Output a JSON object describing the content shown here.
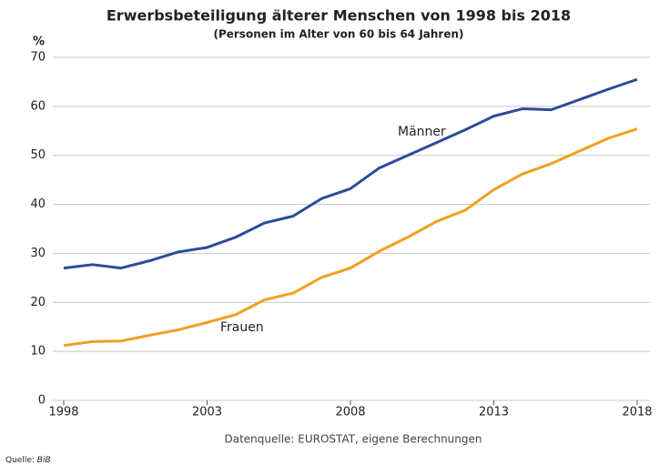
{
  "chart_data": {
    "type": "line",
    "title": "Erwerbsbeteiligung älterer Menschen von 1998 bis 2018",
    "subtitle": "(Personen im Alter von 60 bis 64 Jahren)",
    "y_label": "%",
    "source_note": "Datenquelle: EUROSTAT, eigene Berechnungen",
    "credit_label": "Quelle:",
    "credit_org": "BiB",
    "x": [
      1998,
      1999,
      2000,
      2001,
      2002,
      2003,
      2004,
      2005,
      2006,
      2007,
      2008,
      2009,
      2010,
      2011,
      2012,
      2013,
      2014,
      2015,
      2016,
      2017,
      2018
    ],
    "series": [
      {
        "name": "Männer",
        "color": "#2e4a9a",
        "values": [
          27.0,
          27.7,
          27.0,
          28.5,
          30.3,
          31.2,
          33.3,
          36.2,
          37.6,
          41.2,
          43.2,
          47.4,
          50.0,
          52.6,
          55.2,
          58.0,
          59.5,
          59.3,
          61.4,
          63.5,
          65.5
        ]
      },
      {
        "name": "Frauen",
        "color": "#f0a020",
        "values": [
          11.2,
          12.0,
          12.1,
          13.3,
          14.4,
          15.9,
          17.5,
          20.5,
          21.9,
          25.1,
          27.0,
          30.4,
          33.3,
          36.5,
          38.8,
          43.0,
          46.2,
          48.3,
          50.9,
          53.5,
          55.4
        ]
      }
    ],
    "xlim": [
      1998,
      2018
    ],
    "xticks": [
      1998,
      2003,
      2008,
      2013,
      2018
    ],
    "ylim": [
      0,
      70
    ],
    "yticks": [
      0,
      10,
      20,
      30,
      40,
      50,
      60,
      70
    ],
    "grid": true
  }
}
